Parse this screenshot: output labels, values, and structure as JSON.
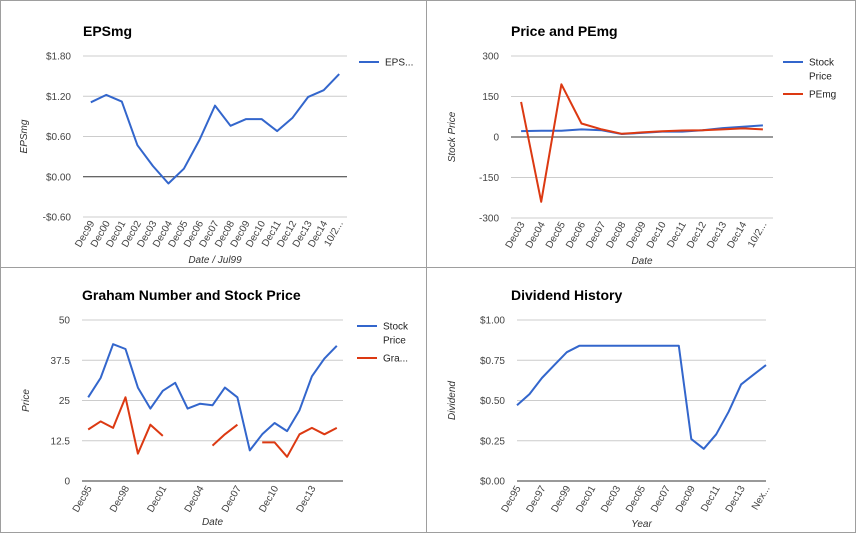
{
  "chart_data": [
    {
      "type": "line",
      "title": "EPSmg",
      "xlabel": "Date / Jul99",
      "ylabel": "EPSmg",
      "ylim": [
        -0.6,
        1.8
      ],
      "yticks": [
        1.8,
        1.2,
        0.6,
        0.0,
        -0.6
      ],
      "ytick_labels": [
        "$1.80",
        "$1.20",
        "$0.60",
        "$0.00",
        "-$0.60"
      ],
      "categories": [
        "Dec99",
        "Dec00",
        "Dec01",
        "Dec02",
        "Dec03",
        "Dec04",
        "Dec05",
        "Dec06",
        "Dec07",
        "Dec08",
        "Dec09",
        "Dec10",
        "Dec11",
        "Dec12",
        "Dec13",
        "Dec14",
        "10/2..."
      ],
      "x": [
        0,
        1,
        2,
        3,
        4,
        5,
        6,
        7,
        8,
        9,
        10,
        11,
        12,
        13,
        14,
        15,
        16
      ],
      "xlim": [
        -0.5,
        16.5
      ],
      "series": [
        {
          "name": "EPS...",
          "color": "#3366cc",
          "x": [
            0,
            1,
            2,
            3,
            4,
            5,
            6,
            7,
            8,
            9,
            10,
            11,
            12,
            13,
            14,
            15,
            16
          ],
          "values": [
            1.11,
            1.22,
            1.12,
            0.47,
            0.16,
            -0.1,
            0.12,
            0.55,
            1.06,
            0.76,
            0.86,
            0.86,
            0.68,
            0.88,
            1.19,
            1.29,
            1.53
          ]
        }
      ],
      "legend": "right",
      "zero_line": true,
      "grid": true
    },
    {
      "type": "line",
      "title": "Price and PEmg",
      "xlabel": "Date",
      "ylabel": "Stock Price",
      "ylim": [
        -300,
        300
      ],
      "yticks": [
        300,
        150,
        0,
        -150,
        -300
      ],
      "ytick_labels": [
        "300",
        "150",
        "0",
        "-150",
        "-300"
      ],
      "categories": [
        "Dec03",
        "Dec04",
        "Dec05",
        "Dec06",
        "Dec07",
        "Dec08",
        "Dec09",
        "Dec10",
        "Dec11",
        "Dec12",
        "Dec13",
        "Dec14",
        "10/2..."
      ],
      "x": [
        0,
        1,
        2,
        3,
        4,
        5,
        6,
        7,
        8,
        9,
        10,
        11,
        12
      ],
      "xlim": [
        -0.5,
        12.5
      ],
      "series": [
        {
          "name": "Stock Price",
          "color": "#3366cc",
          "x": [
            0,
            1,
            2,
            3,
            4,
            5,
            6,
            7,
            8,
            9,
            10,
            11,
            12
          ],
          "values": [
            22,
            23,
            23,
            28,
            25,
            11,
            15,
            20,
            20,
            25,
            33,
            38,
            43
          ]
        },
        {
          "name": "PEmg",
          "color": "#dc3912",
          "x": [
            0,
            1,
            2,
            3,
            4,
            5,
            6,
            7,
            8,
            9,
            10,
            11,
            12
          ],
          "values": [
            130,
            -240,
            195,
            50,
            28,
            12,
            17,
            21,
            24,
            25,
            28,
            32,
            28
          ]
        }
      ],
      "legend": "right",
      "zero_line": true,
      "grid": true
    },
    {
      "type": "line",
      "title": "Graham Number and Stock Price",
      "xlabel": "Date",
      "ylabel": "Price",
      "ylim": [
        0,
        50
      ],
      "yticks": [
        50,
        37.5,
        25,
        12.5,
        0
      ],
      "ytick_labels": [
        "50",
        "37.5",
        "25",
        "12.5",
        "0"
      ],
      "categories": [
        "Dec95",
        "Dec98",
        "Dec01",
        "Dec04",
        "Dec07",
        "Dec10",
        "Dec13"
      ],
      "category_x": [
        0,
        3,
        6,
        9,
        12,
        15,
        18
      ],
      "xlim": [
        -0.5,
        20.5
      ],
      "series": [
        {
          "name": "Stock Price",
          "color": "#3366cc",
          "x": [
            0,
            1,
            2,
            3,
            4,
            5,
            6,
            7,
            8,
            9,
            10,
            11,
            12,
            13,
            14,
            15,
            16,
            17,
            18,
            19,
            20
          ],
          "values": [
            26,
            32,
            42.5,
            41,
            29,
            22.5,
            28,
            30.5,
            22.5,
            24,
            23.5,
            29,
            26,
            9.5,
            14.5,
            18,
            15.5,
            22,
            32.5,
            38,
            42
          ]
        },
        {
          "name": "Gra...",
          "color": "#dc3912",
          "segments": [
            {
              "x": [
                0,
                1,
                2,
                3,
                4,
                5,
                6
              ],
              "values": [
                16,
                18.5,
                16.5,
                26,
                8.5,
                17.5,
                14
              ]
            },
            {
              "x": [
                10,
                11,
                12
              ],
              "values": [
                11,
                14.5,
                17.5
              ]
            },
            {
              "x": [
                14,
                15,
                16,
                17,
                18,
                19,
                20
              ],
              "values": [
                12,
                12,
                7.5,
                14.5,
                16.5,
                14.5,
                16.5
              ]
            }
          ]
        }
      ],
      "legend": "right",
      "grid": true
    },
    {
      "type": "line",
      "title": "Dividend History",
      "xlabel": "Year",
      "ylabel": "Dividend",
      "ylim": [
        0,
        1.0
      ],
      "yticks": [
        1.0,
        0.75,
        0.5,
        0.25,
        0.0
      ],
      "ytick_labels": [
        "$1.00",
        "$0.75",
        "$0.50",
        "$0.25",
        "$0.00"
      ],
      "categories": [
        "Dec95",
        "Dec97",
        "Dec99",
        "Dec01",
        "Dec03",
        "Dec05",
        "Dec07",
        "Dec09",
        "Dec11",
        "Dec13",
        "Nex..."
      ],
      "category_x": [
        0,
        2,
        4,
        6,
        8,
        10,
        12,
        14,
        16,
        18,
        20
      ],
      "xlim": [
        0,
        20
      ],
      "series": [
        {
          "name": "",
          "color": "#3366cc",
          "x": [
            0,
            1,
            2,
            3,
            4,
            5,
            6,
            7,
            8,
            9,
            10,
            11,
            12,
            13,
            14,
            15,
            16,
            17,
            18,
            19,
            20
          ],
          "values": [
            0.47,
            0.54,
            0.64,
            0.72,
            0.8,
            0.84,
            0.84,
            0.84,
            0.84,
            0.84,
            0.84,
            0.84,
            0.84,
            0.84,
            0.26,
            0.2,
            0.29,
            0.43,
            0.6,
            0.66,
            0.72
          ]
        }
      ],
      "legend": "none",
      "grid": true
    }
  ]
}
